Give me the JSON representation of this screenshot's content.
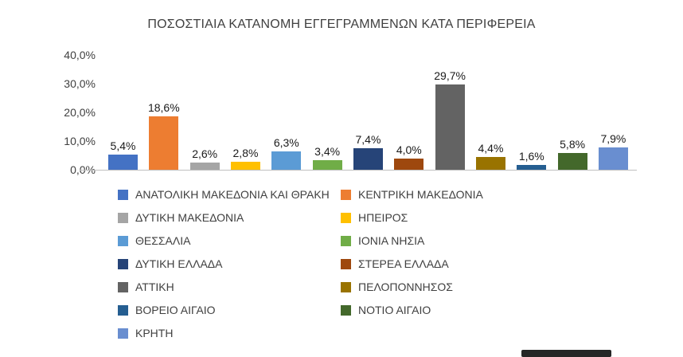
{
  "title": "ΠΟΣΟΣΤΙΑΙΑ ΚΑΤΑΝΟΜΗ ΕΓΓΕΓΡΑΜΜΕΝΩΝ ΚΑΤΑ ΠΕΡΙΦΕΡΕΙΑ",
  "chart_data": {
    "type": "bar",
    "title": "ΠΟΣΟΣΤΙΑΙΑ ΚΑΤΑΝΟΜΗ ΕΓΓΕΓΡΑΜΜΕΝΩΝ ΚΑΤΑ ΠΕΡΙΦΕΡΕΙΑ",
    "categories": [
      "ΑΝΑΤΟΛΙΚΗ ΜΑΚΕΔΟΝΙΑ ΚΑΙ ΘΡΑΚΗ",
      "ΚΕΝΤΡΙΚΗ ΜΑΚΕΔΟΝΙΑ",
      "ΔΥΤΙΚΗ ΜΑΚΕΔΟΝΙΑ",
      "ΗΠΕΙΡΟΣ",
      "ΘΕΣΣΑΛΙΑ",
      "ΙΟΝΙΑ ΝΗΣΙΑ",
      "ΔΥΤΙΚΗ ΕΛΛΑΔΑ",
      "ΣΤΕΡΕΑ ΕΛΛΑΔΑ",
      "ΑΤΤΙΚΗ",
      "ΠΕΛΟΠΟΝΝΗΣΟΣ",
      "ΒΟΡΕΙΟ ΑΙΓΑΙΟ",
      "ΝΟΤΙΟ ΑΙΓΑΙΟ",
      "ΚΡΗΤΗ"
    ],
    "values": [
      5.4,
      18.6,
      2.6,
      2.8,
      6.3,
      3.4,
      7.4,
      4.0,
      29.7,
      4.4,
      1.6,
      5.8,
      7.9
    ],
    "value_labels": [
      "5,4%",
      "18,6%",
      "2,6%",
      "2,8%",
      "6,3%",
      "3,4%",
      "7,4%",
      "4,0%",
      "29,7%",
      "4,4%",
      "1,6%",
      "5,8%",
      "7,9%"
    ],
    "colors": [
      "#4472C4",
      "#ED7D31",
      "#A5A5A5",
      "#FFC000",
      "#5B9BD5",
      "#70AD47",
      "#264478",
      "#9E480E",
      "#636363",
      "#997300",
      "#255E91",
      "#43682B",
      "#698ED0"
    ],
    "xlabel": "",
    "ylabel": "",
    "ylim": [
      0,
      40
    ],
    "y_ticks": [
      0,
      10,
      20,
      30,
      40
    ],
    "y_tick_labels": [
      "0,0%",
      "10,0%",
      "20,0%",
      "30,0%",
      "40,0%"
    ],
    "grid": false,
    "legend_position": "bottom"
  }
}
